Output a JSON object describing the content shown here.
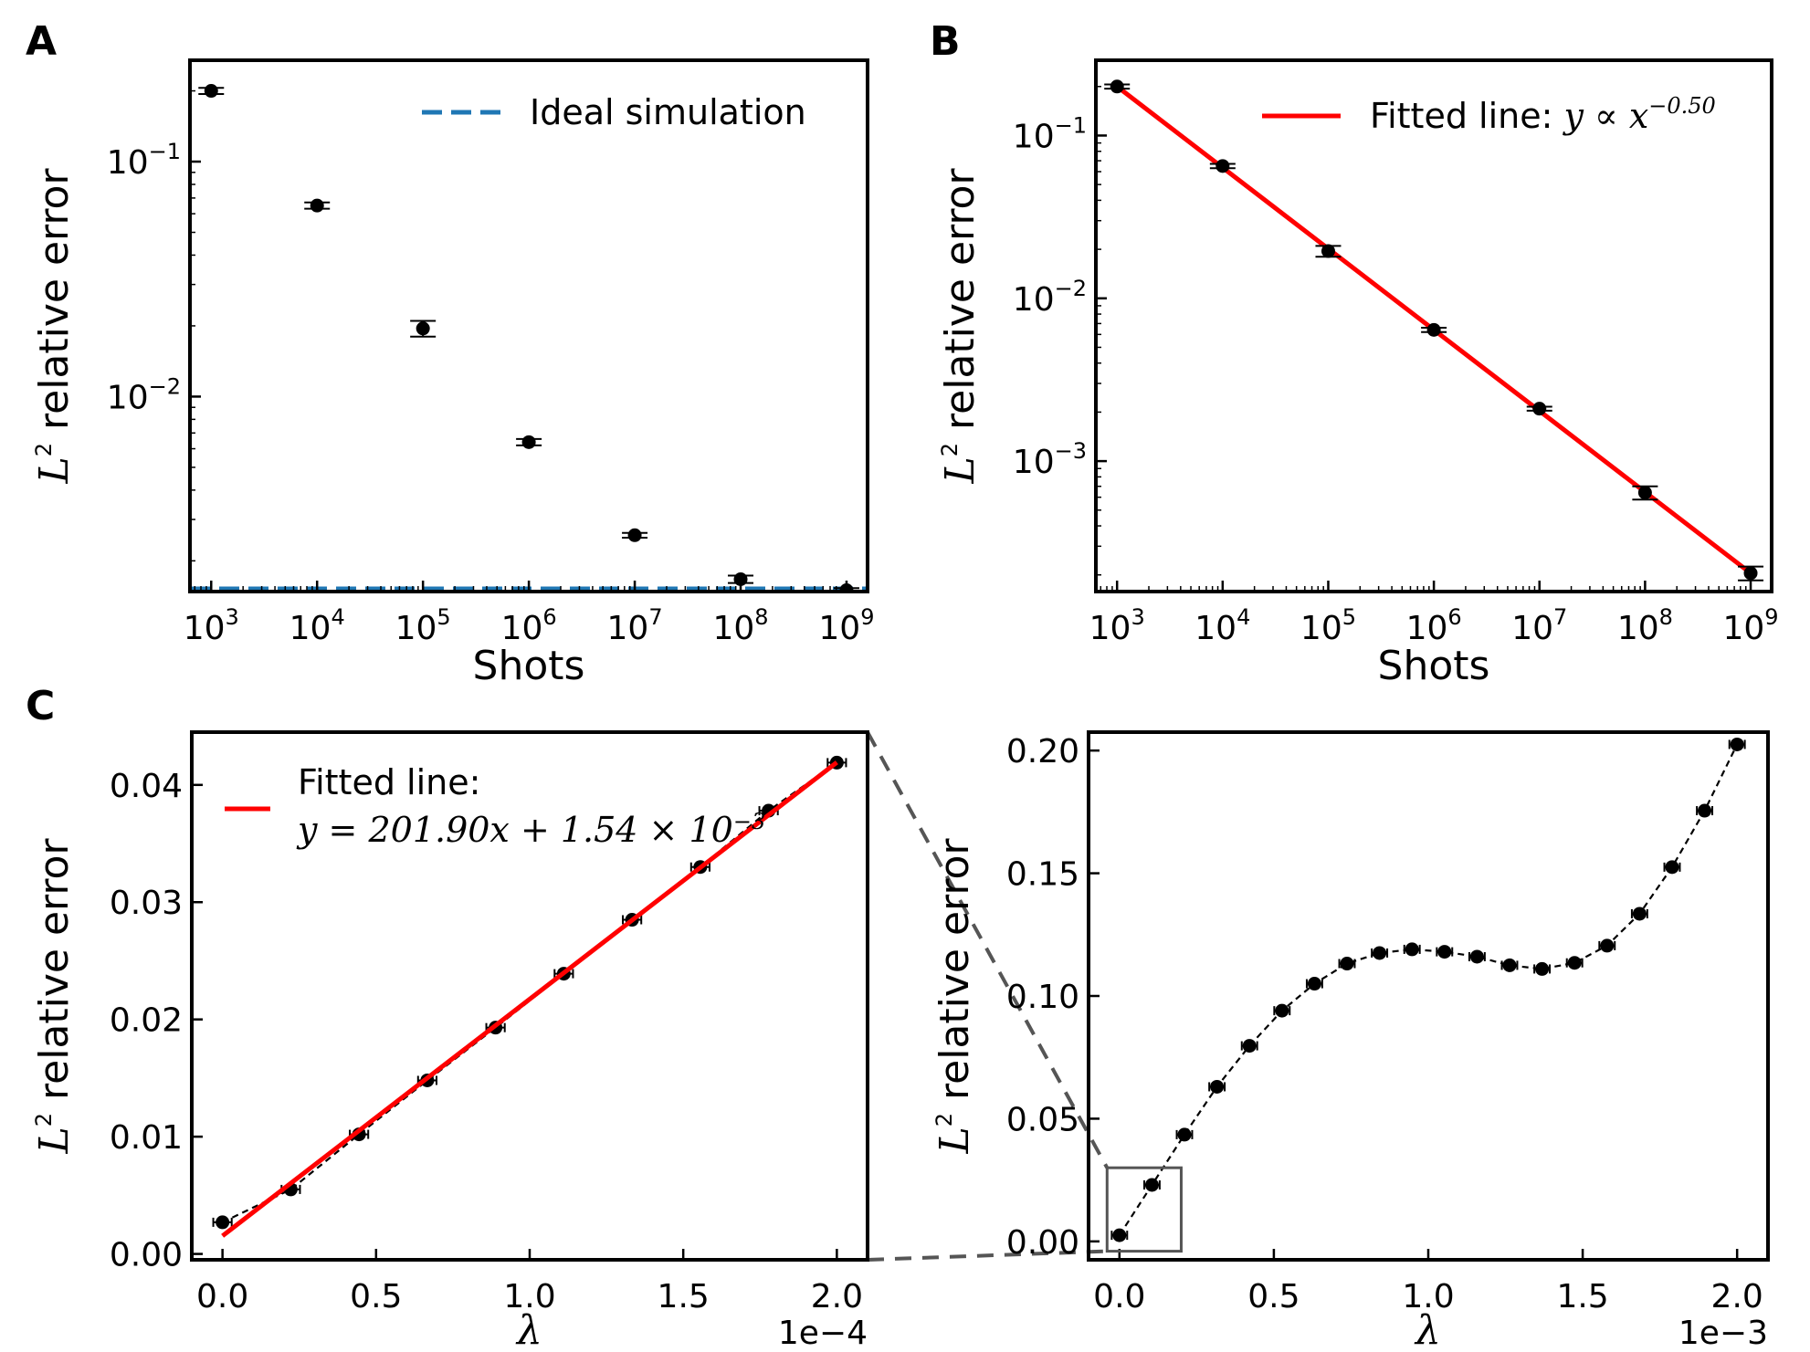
{
  "chart_data": [
    {
      "id": "A",
      "type": "scatter",
      "panel_label": "A",
      "xscale": "log",
      "yscale": "log",
      "xlabel": "Shots",
      "ylabel_prefix": "L",
      "ylabel_sup": "2",
      "ylabel_suffix": " relative error",
      "xlim": [
        630,
        1580000000
      ],
      "ylim": [
        0.00148,
        0.27
      ],
      "x_ticks": [
        {
          "value": 1000,
          "base": "10",
          "exp": "3"
        },
        {
          "value": 10000,
          "base": "10",
          "exp": "4"
        },
        {
          "value": 100000,
          "base": "10",
          "exp": "5"
        },
        {
          "value": 1000000,
          "base": "10",
          "exp": "6"
        },
        {
          "value": 10000000,
          "base": "10",
          "exp": "7"
        },
        {
          "value": 100000000,
          "base": "10",
          "exp": "8"
        },
        {
          "value": 1000000000,
          "base": "10",
          "exp": "9"
        }
      ],
      "y_ticks": [
        {
          "value": 0.1,
          "base": "10",
          "exp": "−1"
        },
        {
          "value": 0.01,
          "base": "10",
          "exp": "−2"
        }
      ],
      "series": [
        {
          "name": "data",
          "x": [
            1000,
            10000,
            100000,
            1000000,
            10000000,
            100000000,
            1000000000
          ],
          "y": [
            0.2,
            0.065,
            0.0195,
            0.0064,
            0.00257,
            0.00167,
            0.0015
          ],
          "yerr": [
            0.006,
            0.002,
            0.0015,
            0.0002,
            6e-05,
            6e-05,
            3e-05
          ]
        }
      ],
      "hline": {
        "y": 0.00152,
        "color": "#1f77b4",
        "style": "dashed"
      },
      "legend": [
        {
          "label": "Ideal simulation",
          "color": "#1f77b4",
          "style": "dashed"
        }
      ],
      "legend_position": "top-right"
    },
    {
      "id": "B",
      "type": "scatter",
      "panel_label": "B",
      "xscale": "log",
      "yscale": "log",
      "xlabel": "Shots",
      "ylabel_prefix": "L",
      "ylabel_sup": "2",
      "ylabel_suffix": " relative error",
      "xlim": [
        630,
        1580000000
      ],
      "ylim": [
        0.000158,
        0.29
      ],
      "x_ticks": [
        {
          "value": 1000,
          "base": "10",
          "exp": "3"
        },
        {
          "value": 10000,
          "base": "10",
          "exp": "4"
        },
        {
          "value": 100000,
          "base": "10",
          "exp": "5"
        },
        {
          "value": 1000000,
          "base": "10",
          "exp": "6"
        },
        {
          "value": 10000000,
          "base": "10",
          "exp": "7"
        },
        {
          "value": 100000000,
          "base": "10",
          "exp": "8"
        },
        {
          "value": 1000000000,
          "base": "10",
          "exp": "9"
        }
      ],
      "y_ticks": [
        {
          "value": 0.1,
          "base": "10",
          "exp": "−1"
        },
        {
          "value": 0.01,
          "base": "10",
          "exp": "−2"
        },
        {
          "value": 0.001,
          "base": "10",
          "exp": "−3"
        }
      ],
      "series": [
        {
          "name": "data",
          "x": [
            1000,
            10000,
            100000,
            1000000,
            10000000,
            100000000,
            1000000000
          ],
          "y": [
            0.2,
            0.065,
            0.0195,
            0.0064,
            0.0021,
            0.00064,
            0.000205
          ],
          "yerr": [
            0.006,
            0.002,
            0.0015,
            0.0002,
            6e-05,
            6e-05,
            2e-05
          ]
        }
      ],
      "fit_line": {
        "x": [
          1000,
          1000000000
        ],
        "y": [
          0.2,
          0.000205
        ],
        "color": "#ff0000"
      },
      "legend": [
        {
          "label": "Fitted line: ",
          "math": "y ∝ x",
          "math_sup": "−0.50",
          "color": "#ff0000",
          "style": "solid"
        }
      ],
      "legend_position": "top-right"
    },
    {
      "id": "C1",
      "type": "line",
      "panel_label": "C",
      "xscale": "linear",
      "yscale": "linear",
      "xlabel": "λ",
      "ylabel_prefix": "L",
      "ylabel_sup": "2",
      "ylabel_suffix": " relative error",
      "offset_text": "1e−4",
      "xlim": [
        -0.1,
        2.1
      ],
      "ylim": [
        -0.0005,
        0.0445
      ],
      "x_ticks": [
        {
          "value": 0.0,
          "label": "0.0"
        },
        {
          "value": 0.5,
          "label": "0.5"
        },
        {
          "value": 1.0,
          "label": "1.0"
        },
        {
          "value": 1.5,
          "label": "1.5"
        },
        {
          "value": 2.0,
          "label": "2.0"
        }
      ],
      "y_ticks": [
        {
          "value": 0.0,
          "label": "0.00"
        },
        {
          "value": 0.01,
          "label": "0.01"
        },
        {
          "value": 0.02,
          "label": "0.02"
        },
        {
          "value": 0.03,
          "label": "0.03"
        },
        {
          "value": 0.04,
          "label": "0.04"
        }
      ],
      "series": [
        {
          "name": "data",
          "x": [
            0.0,
            0.2222,
            0.4444,
            0.6667,
            0.8889,
            1.1111,
            1.3333,
            1.5556,
            1.7778,
            2.0
          ],
          "y": [
            0.0027,
            0.0055,
            0.0102,
            0.0148,
            0.0193,
            0.0239,
            0.0285,
            0.033,
            0.0378,
            0.0419
          ],
          "xerr": 0.03
        }
      ],
      "fit_line": {
        "x": [
          0.0,
          2.0
        ],
        "y": [
          0.00154,
          0.04192
        ],
        "color": "#ff0000"
      },
      "legend": [
        {
          "label": "Fitted line:",
          "math": "y = 201.90x + 1.54 × 10",
          "math_sup": "−3",
          "color": "#ff0000",
          "style": "solid"
        }
      ],
      "legend_position": "top-left"
    },
    {
      "id": "C2",
      "type": "line",
      "panel_label": "",
      "xscale": "linear",
      "yscale": "linear",
      "xlabel": "λ",
      "ylabel_prefix": "L",
      "ylabel_sup": "2",
      "ylabel_suffix": " relative error",
      "offset_text": "1e−3",
      "xlim": [
        -0.1,
        2.1
      ],
      "ylim": [
        -0.0075,
        0.2075
      ],
      "x_ticks": [
        {
          "value": 0.0,
          "label": "0.0"
        },
        {
          "value": 0.5,
          "label": "0.5"
        },
        {
          "value": 1.0,
          "label": "1.0"
        },
        {
          "value": 1.5,
          "label": "1.5"
        },
        {
          "value": 2.0,
          "label": "2.0"
        }
      ],
      "y_ticks": [
        {
          "value": 0.0,
          "label": "0.00"
        },
        {
          "value": 0.05,
          "label": "0.05"
        },
        {
          "value": 0.1,
          "label": "0.10"
        },
        {
          "value": 0.15,
          "label": "0.15"
        },
        {
          "value": 0.2,
          "label": "0.20"
        }
      ],
      "series": [
        {
          "name": "data",
          "x": [
            0.0,
            0.1053,
            0.2105,
            0.3158,
            0.4211,
            0.5263,
            0.6316,
            0.7368,
            0.8421,
            0.9474,
            1.0526,
            1.1579,
            1.2632,
            1.3684,
            1.4737,
            1.5789,
            1.6842,
            1.7895,
            1.8947,
            2.0
          ],
          "y": [
            0.0025,
            0.023,
            0.0435,
            0.063,
            0.0797,
            0.094,
            0.105,
            0.1132,
            0.1175,
            0.119,
            0.118,
            0.116,
            0.1125,
            0.111,
            0.1135,
            0.1205,
            0.1335,
            0.1525,
            0.1755,
            0.2025
          ],
          "xerr": 0.025
        }
      ],
      "zoom_box": {
        "x0": -0.04,
        "x1": 0.2,
        "y0": -0.004,
        "y1": 0.03
      }
    }
  ]
}
